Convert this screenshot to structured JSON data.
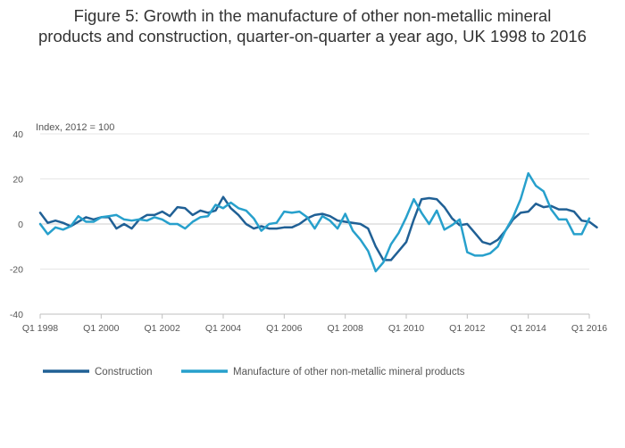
{
  "title_lines": [
    "Figure 5: Growth in the manufacture of other non-metallic mineral",
    "products and construction, quarter-on-quarter a year ago, UK 1998 to 2016"
  ],
  "chart_data": {
    "type": "line",
    "title": "Figure 5: Growth in the manufacture of other non-metallic mineral products and construction, quarter-on-quarter a year ago, UK 1998 to 2016",
    "ylabel": "Index, 2012 = 100",
    "xlabel": "",
    "ylim": [
      -40,
      40
    ],
    "yticks": [
      -40,
      -20,
      0,
      20,
      40
    ],
    "xlim": [
      1998.0,
      2016.0
    ],
    "xticks": [
      {
        "label": "Q1 1998",
        "x": 1998.0
      },
      {
        "label": "Q1 2000",
        "x": 2000.0
      },
      {
        "label": "Q1 2002",
        "x": 2002.0
      },
      {
        "label": "Q1 2004",
        "x": 2004.0
      },
      {
        "label": "Q1 2006",
        "x": 2006.0
      },
      {
        "label": "Q1 2008",
        "x": 2008.0
      },
      {
        "label": "Q1 2010",
        "x": 2010.0
      },
      {
        "label": "Q1 2012",
        "x": 2012.0
      },
      {
        "label": "Q1 2014",
        "x": 2014.0
      },
      {
        "label": "Q1 2016",
        "x": 2016.0
      }
    ],
    "grid": true,
    "legend_position": "bottom",
    "series": [
      {
        "name": "Construction",
        "color": "#206095",
        "values": [
          5,
          0.5,
          1.5,
          0.5,
          -1,
          1,
          3,
          2,
          3,
          3,
          -2,
          0,
          -2,
          2,
          4,
          4,
          5.5,
          3.5,
          7.5,
          7,
          4,
          6,
          5,
          6,
          12,
          7,
          4,
          0,
          -2,
          -1,
          -2,
          -2,
          -1.5,
          -1.5,
          0,
          2.5,
          4,
          4.5,
          3.5,
          1.5,
          1,
          0.5,
          0,
          -2,
          -10,
          -16,
          -16,
          -12,
          -8,
          2,
          11,
          11.5,
          11,
          7.5,
          2.5,
          -0.5,
          0,
          -4,
          -8,
          -9,
          -7,
          -3,
          2,
          5,
          5.5,
          9,
          7.5,
          8,
          6.5,
          6.5,
          5.5,
          1.5,
          1,
          -1.5
        ]
      },
      {
        "name": "Manufacture of other non-metallic mineral products",
        "color": "#27a0cc",
        "values": [
          0,
          -4.5,
          -1.5,
          -2.5,
          -1,
          3.5,
          1,
          1,
          3,
          3.5,
          4,
          2,
          1.5,
          2,
          1.5,
          3,
          2,
          0,
          0,
          -2,
          1,
          3,
          3.5,
          8.5,
          7,
          9.5,
          7,
          6,
          2.5,
          -3,
          0,
          0.5,
          5.5,
          5,
          5.5,
          3,
          -2,
          3.5,
          1.5,
          -2,
          4.5,
          -3,
          -7,
          -12,
          -21,
          -17,
          -9,
          -4,
          3,
          11,
          5,
          0,
          6,
          -2.5,
          -0.5,
          2,
          -12.5,
          -14,
          -14,
          -13,
          -10,
          -3,
          3,
          11,
          22.5,
          17,
          14.5,
          6.5,
          2,
          2,
          -4.5,
          -4.5,
          2.5
        ]
      }
    ]
  }
}
